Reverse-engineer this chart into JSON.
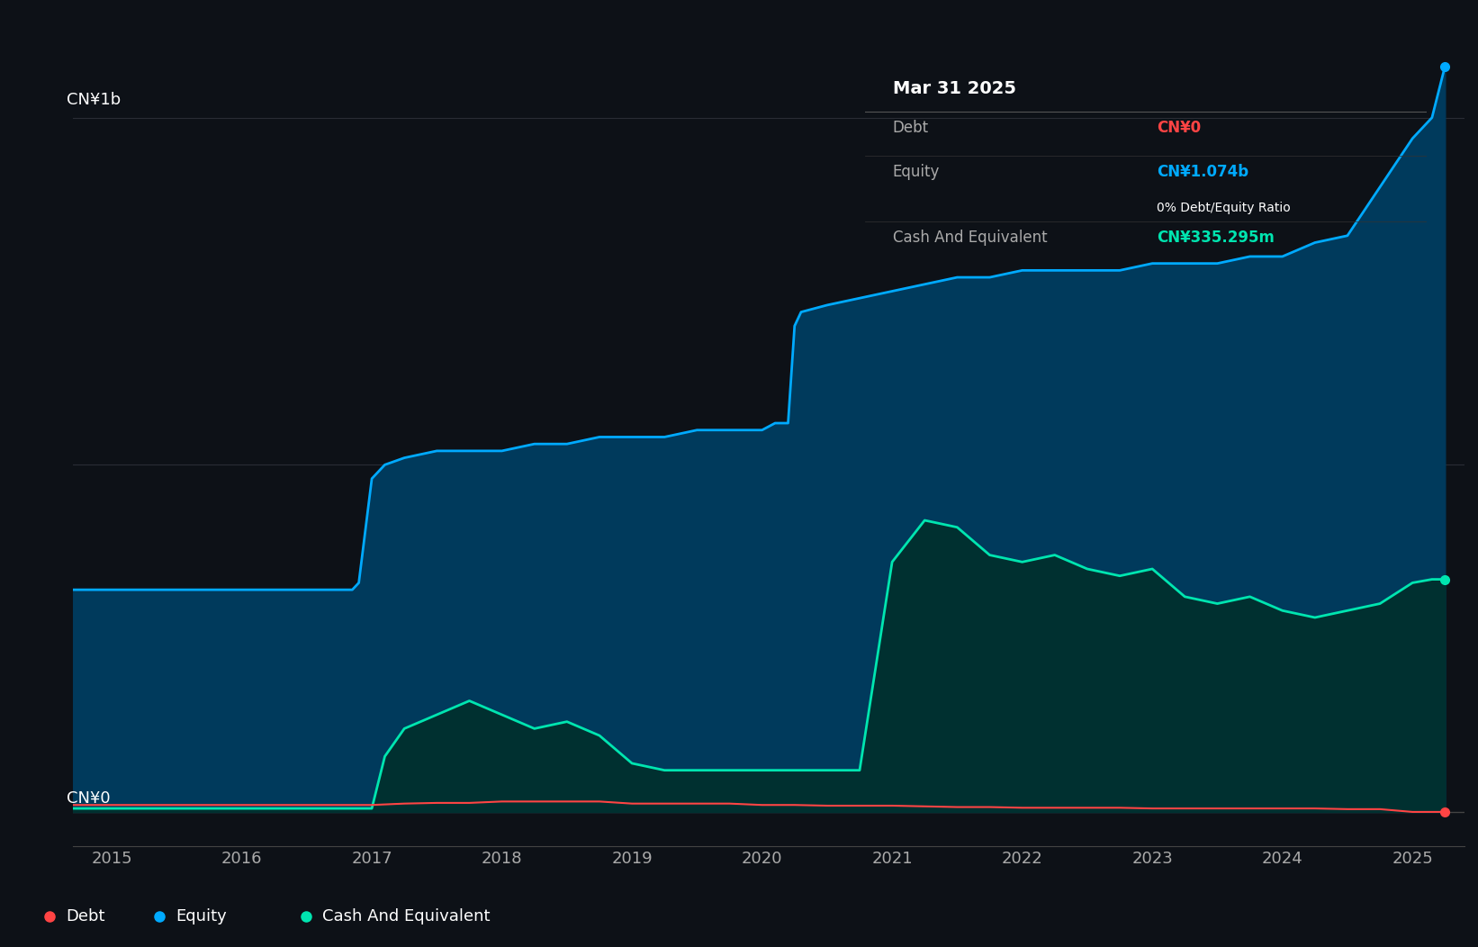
{
  "background_color": "#0d1117",
  "chart_bg": "#0d1117",
  "ylabel_text": "CN¥1b",
  "y0_label": "CN¥0",
  "x_ticks": [
    2015,
    2016,
    2017,
    2018,
    2019,
    2020,
    2021,
    2022,
    2023,
    2024,
    2025
  ],
  "xlim": [
    2014.7,
    2025.4
  ],
  "ylim": [
    -0.05,
    1.15
  ],
  "grid_color": "#2a2d35",
  "equity_color": "#00aaff",
  "equity_fill": "#003a5c",
  "debt_color": "#ff4444",
  "cash_color": "#00e5b0",
  "cash_fill": "#003030",
  "tooltip_bg": "#111111",
  "tooltip_title": "Mar 31 2025",
  "tooltip_debt_label": "Debt",
  "tooltip_debt_value": "CN¥0",
  "tooltip_debt_color": "#ff4444",
  "tooltip_equity_label": "Equity",
  "tooltip_equity_value": "CN¥1.074b",
  "tooltip_equity_color": "#00aaff",
  "tooltip_ratio_text": "0% Debt/Equity Ratio",
  "tooltip_cash_label": "Cash And Equivalent",
  "tooltip_cash_value": "CN¥335.295m",
  "tooltip_cash_color": "#00e5b0",
  "legend_debt": "Debt",
  "legend_equity": "Equity",
  "legend_cash": "Cash And Equivalent",
  "equity_x": [
    2014.7,
    2014.75,
    2015.0,
    2015.25,
    2015.5,
    2015.75,
    2016.0,
    2016.25,
    2016.5,
    2016.75,
    2016.85,
    2016.9,
    2017.0,
    2017.1,
    2017.25,
    2017.5,
    2017.75,
    2018.0,
    2018.25,
    2018.5,
    2018.75,
    2019.0,
    2019.25,
    2019.5,
    2019.75,
    2020.0,
    2020.1,
    2020.2,
    2020.25,
    2020.3,
    2020.5,
    2020.75,
    2021.0,
    2021.25,
    2021.5,
    2021.75,
    2022.0,
    2022.25,
    2022.5,
    2022.75,
    2023.0,
    2023.25,
    2023.5,
    2023.75,
    2024.0,
    2024.25,
    2024.5,
    2024.75,
    2025.0,
    2025.15,
    2025.25
  ],
  "equity_y": [
    0.32,
    0.32,
    0.32,
    0.32,
    0.32,
    0.32,
    0.32,
    0.32,
    0.32,
    0.32,
    0.32,
    0.33,
    0.48,
    0.5,
    0.51,
    0.52,
    0.52,
    0.52,
    0.53,
    0.53,
    0.54,
    0.54,
    0.54,
    0.55,
    0.55,
    0.55,
    0.56,
    0.56,
    0.7,
    0.72,
    0.73,
    0.74,
    0.75,
    0.76,
    0.77,
    0.77,
    0.78,
    0.78,
    0.78,
    0.78,
    0.79,
    0.79,
    0.79,
    0.8,
    0.8,
    0.82,
    0.83,
    0.9,
    0.97,
    1.0,
    1.074
  ],
  "cash_x": [
    2014.7,
    2015.0,
    2015.25,
    2015.5,
    2015.75,
    2016.0,
    2016.25,
    2016.5,
    2016.75,
    2016.85,
    2016.9,
    2017.0,
    2017.1,
    2017.25,
    2017.5,
    2017.75,
    2018.0,
    2018.25,
    2018.5,
    2018.75,
    2019.0,
    2019.25,
    2019.5,
    2019.75,
    2020.0,
    2020.1,
    2020.2,
    2020.25,
    2020.5,
    2020.75,
    2021.0,
    2021.25,
    2021.5,
    2021.75,
    2022.0,
    2022.25,
    2022.5,
    2022.75,
    2023.0,
    2023.25,
    2023.5,
    2023.75,
    2024.0,
    2024.25,
    2024.5,
    2024.75,
    2025.0,
    2025.15,
    2025.25
  ],
  "cash_y": [
    0.005,
    0.005,
    0.005,
    0.005,
    0.005,
    0.005,
    0.005,
    0.005,
    0.005,
    0.005,
    0.005,
    0.005,
    0.08,
    0.12,
    0.14,
    0.16,
    0.14,
    0.12,
    0.13,
    0.11,
    0.07,
    0.06,
    0.06,
    0.06,
    0.06,
    0.06,
    0.06,
    0.06,
    0.06,
    0.06,
    0.36,
    0.42,
    0.41,
    0.37,
    0.36,
    0.37,
    0.35,
    0.34,
    0.35,
    0.31,
    0.3,
    0.31,
    0.29,
    0.28,
    0.29,
    0.3,
    0.33,
    0.335,
    0.335
  ],
  "debt_x": [
    2014.7,
    2015.0,
    2015.25,
    2015.5,
    2015.75,
    2016.0,
    2016.25,
    2016.5,
    2016.75,
    2017.0,
    2017.25,
    2017.5,
    2017.75,
    2018.0,
    2018.25,
    2018.5,
    2018.75,
    2019.0,
    2019.25,
    2019.5,
    2019.75,
    2020.0,
    2020.25,
    2020.5,
    2020.75,
    2021.0,
    2021.25,
    2021.5,
    2021.75,
    2022.0,
    2022.25,
    2022.5,
    2022.75,
    2023.0,
    2023.25,
    2023.5,
    2023.75,
    2024.0,
    2024.25,
    2024.5,
    2024.75,
    2025.0,
    2025.15,
    2025.25
  ],
  "debt_y": [
    0.01,
    0.01,
    0.01,
    0.01,
    0.01,
    0.01,
    0.01,
    0.01,
    0.01,
    0.01,
    0.012,
    0.013,
    0.013,
    0.015,
    0.015,
    0.015,
    0.015,
    0.012,
    0.012,
    0.012,
    0.012,
    0.01,
    0.01,
    0.009,
    0.009,
    0.009,
    0.008,
    0.007,
    0.007,
    0.006,
    0.006,
    0.006,
    0.006,
    0.005,
    0.005,
    0.005,
    0.005,
    0.005,
    0.005,
    0.004,
    0.004,
    0.0,
    0.0,
    0.0
  ]
}
